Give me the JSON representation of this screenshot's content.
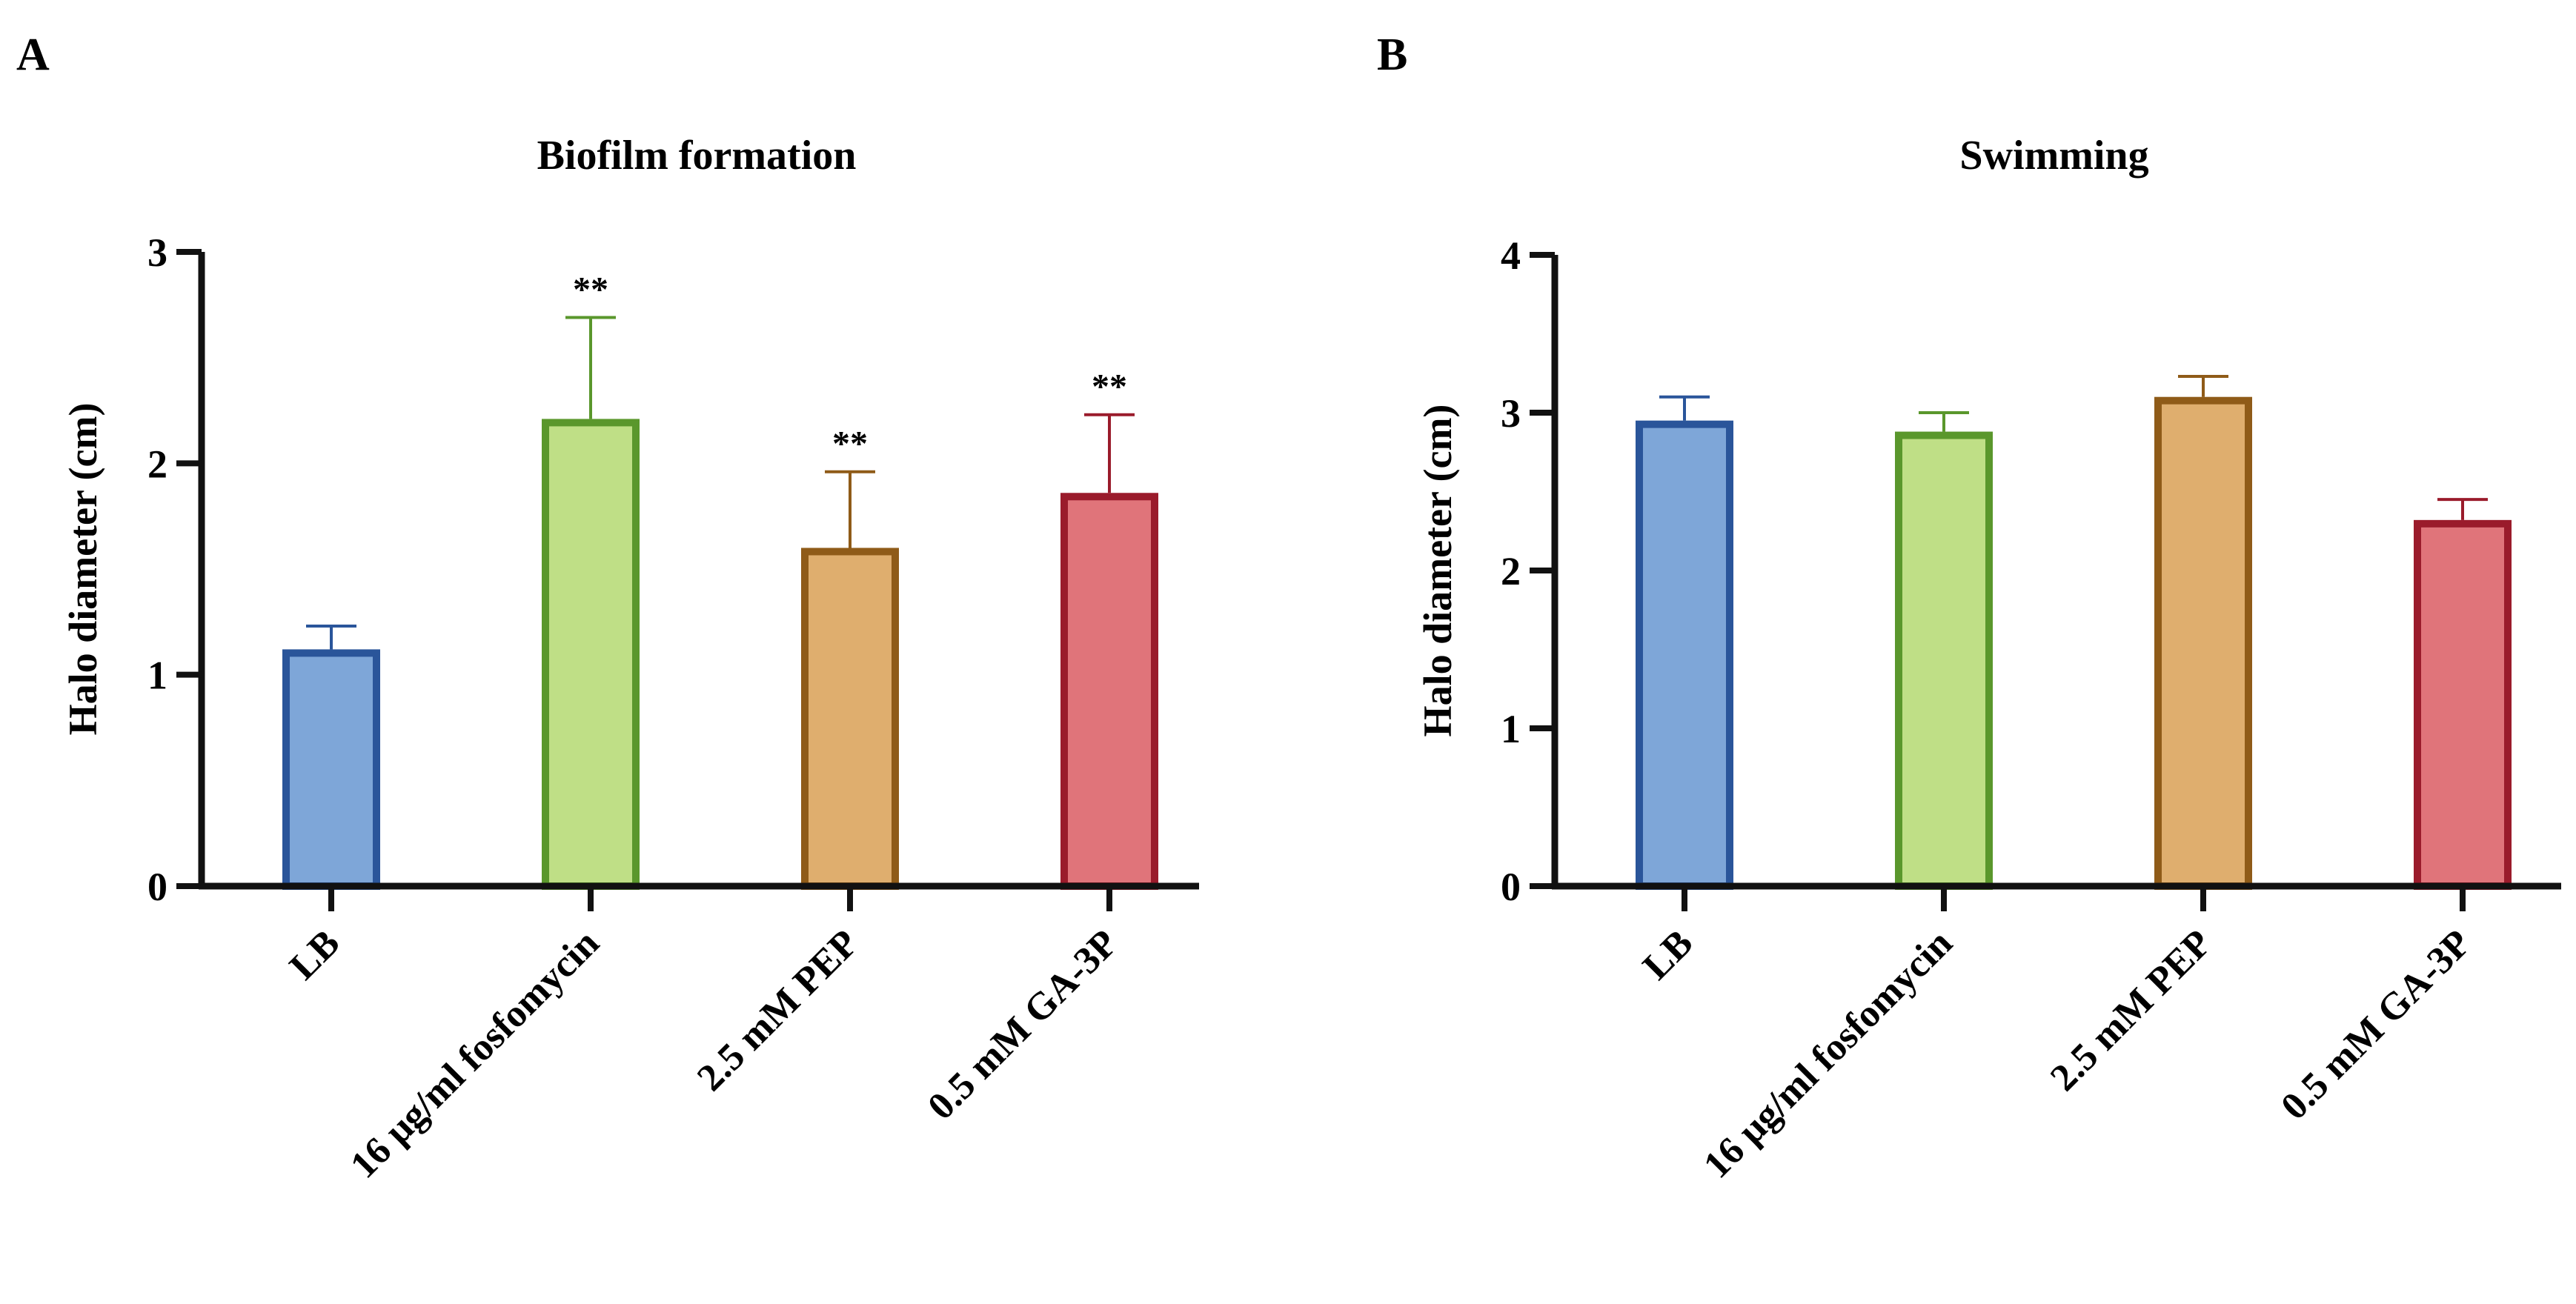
{
  "chart_data": [
    {
      "type": "bar",
      "panel": "A",
      "title": "Biofilm formation",
      "xlabel": "",
      "ylabel": "Halo diameter (cm)",
      "ylim": [
        0,
        3
      ],
      "yticks": [
        "0",
        "1",
        "2",
        "3"
      ],
      "grid": false,
      "categories": [
        "LB",
        "16 μg/ml fosfomycin",
        "2.5 mM PEP",
        "0.5 mM GA-3P"
      ],
      "values": [
        1.12,
        2.21,
        1.6,
        1.86
      ],
      "errors": [
        0.11,
        0.48,
        0.36,
        0.37
      ],
      "significance": [
        "",
        "**",
        "**",
        "**"
      ],
      "fill_colors": [
        "#7ea6d8",
        "#bfdf86",
        "#dfae6e",
        "#e0747a"
      ],
      "edge_colors": [
        "#2a559a",
        "#5a972c",
        "#8f5b18",
        "#9a1b2b"
      ]
    },
    {
      "type": "bar",
      "panel": "B",
      "title": "Swimming",
      "xlabel": "",
      "ylabel": "Halo diameter (cm)",
      "ylim": [
        0,
        4
      ],
      "yticks": [
        "0",
        "1",
        "2",
        "3",
        "4"
      ],
      "grid": false,
      "categories": [
        "LB",
        "16 μg/ml fosfomycin",
        "2.5 mM PEP",
        "0.5 mM GA-3P"
      ],
      "values": [
        2.95,
        2.88,
        3.1,
        2.32
      ],
      "errors": [
        0.15,
        0.12,
        0.13,
        0.13
      ],
      "significance": [
        "",
        "",
        "",
        ""
      ],
      "fill_colors": [
        "#7ea6d8",
        "#bfdf86",
        "#dfae6e",
        "#e0747a"
      ],
      "edge_colors": [
        "#2a559a",
        "#5a972c",
        "#8f5b18",
        "#9a1b2b"
      ]
    }
  ]
}
